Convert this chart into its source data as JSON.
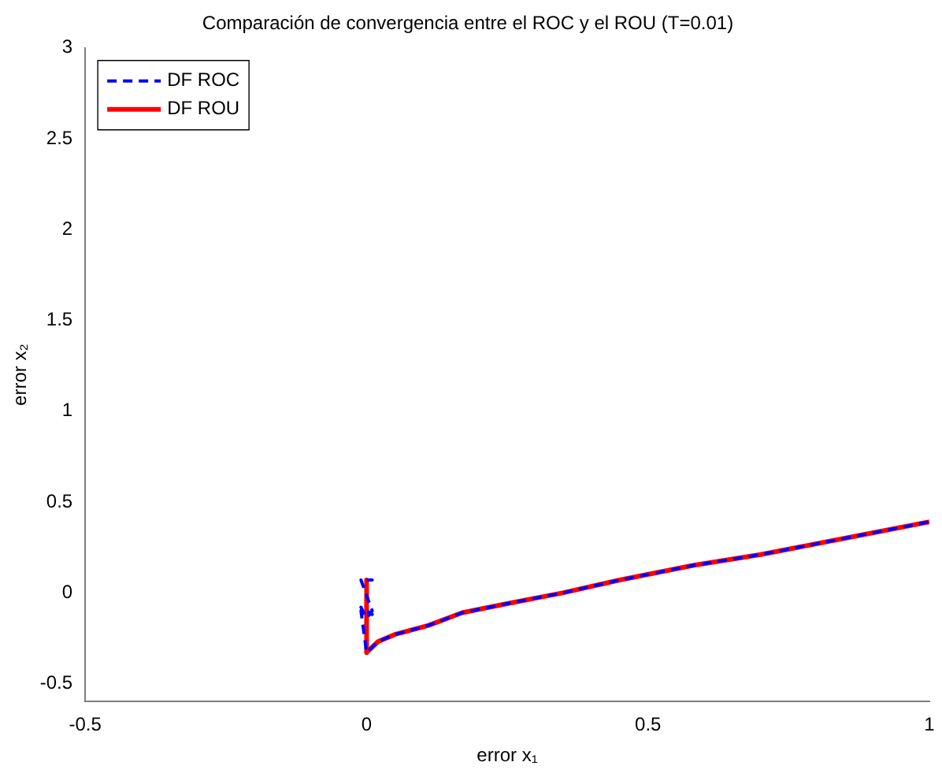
{
  "chart_data": {
    "type": "line",
    "title": "Comparación de convergencia entre el ROC y el ROU (T=0.01)",
    "xlabel": "error x₁",
    "ylabel": "error x₂",
    "xlim": [
      -0.5,
      1
    ],
    "xticks": [
      -0.5,
      0,
      0.5,
      1
    ],
    "ylim": [
      -0.6,
      3
    ],
    "yticks": [
      -0.5,
      0,
      0.5,
      1,
      1.5,
      2,
      2.5,
      3
    ],
    "grid": false,
    "legend": "top left",
    "marker": "none",
    "series": [
      {
        "name": "DF ROC",
        "color": "#0000ff",
        "line_style": "dashed",
        "x": [
          0,
          0.01,
          -0.01,
          0.01,
          0,
          -0.01,
          0.01,
          -0.01,
          0,
          0.02,
          0.05,
          0.11,
          0.17,
          0.25,
          0.35,
          0.45,
          0.58,
          0.7,
          0.85,
          1
        ],
        "values": [
          0.07,
          0.07,
          0.07,
          -0.1,
          -0.14,
          -0.08,
          -0.12,
          -0.1,
          -0.33,
          -0.27,
          -0.23,
          -0.18,
          -0.11,
          -0.06,
          0.0,
          0.07,
          0.15,
          0.21,
          0.3,
          0.39
        ]
      },
      {
        "name": "DF ROU",
        "color": "#ff0000",
        "line_style": "solid",
        "x": [
          0,
          0,
          0.02,
          0.05,
          0.11,
          0.17,
          0.25,
          0.35,
          0.45,
          0.58,
          0.7,
          0.85,
          1
        ],
        "values": [
          0.07,
          -0.33,
          -0.27,
          -0.23,
          -0.18,
          -0.11,
          -0.06,
          0.0,
          0.07,
          0.15,
          0.21,
          0.3,
          0.39
        ]
      }
    ]
  }
}
